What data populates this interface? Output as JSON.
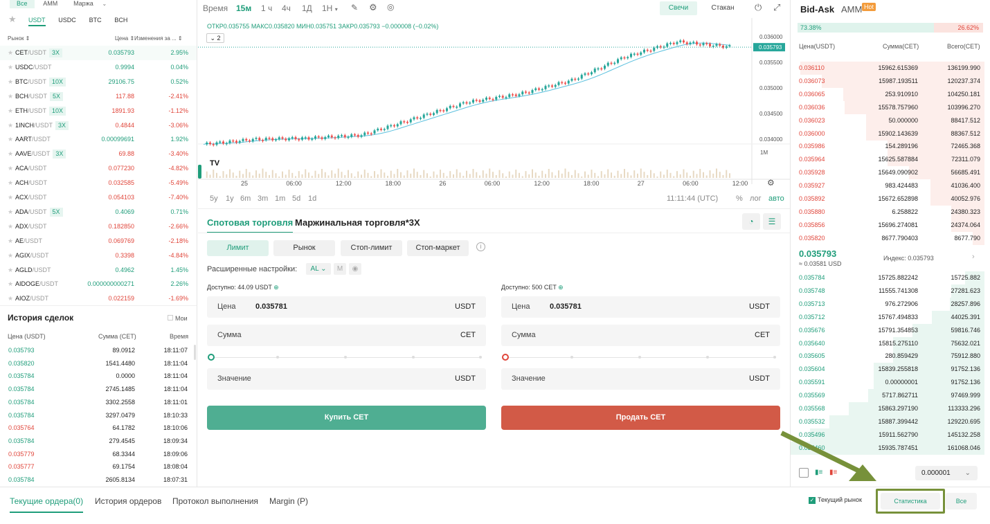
{
  "colors": {
    "green": "#1f9d7a",
    "red": "#e0453a",
    "buy_button": "#4fae92",
    "sell_button": "#d25a47",
    "annotation": "#77913a"
  },
  "market_tabs": [
    "Все",
    "AMM",
    "Маржа"
  ],
  "quote_tabs": [
    "USDT",
    "USDC",
    "BTC",
    "BCH"
  ],
  "markets_header": {
    "market": "Рынок",
    "price": "Цена",
    "change": "Изменения за ..."
  },
  "markets": [
    {
      "base": "CET",
      "quote": "/USDT",
      "lev": "3X",
      "price": "0.035793",
      "change": "2.95%",
      "up": true
    },
    {
      "base": "USDC",
      "quote": "/USDT",
      "lev": "",
      "price": "0.9994",
      "change": "0.04%",
      "up": true
    },
    {
      "base": "BTC",
      "quote": "/USDT",
      "lev": "10X",
      "price": "29106.75",
      "change": "0.52%",
      "up": true
    },
    {
      "base": "BCH",
      "quote": "/USDT",
      "lev": "5X",
      "price": "117.88",
      "change": "-2.41%",
      "up": false
    },
    {
      "base": "ETH",
      "quote": "/USDT",
      "lev": "10X",
      "price": "1891.93",
      "change": "-1.12%",
      "up": false
    },
    {
      "base": "1INCH",
      "quote": "/USDT",
      "lev": "3X",
      "price": "0.4844",
      "change": "-3.06%",
      "up": false
    },
    {
      "base": "AART",
      "quote": "/USDT",
      "lev": "",
      "price": "0.00099691",
      "change": "1.92%",
      "up": true
    },
    {
      "base": "AAVE",
      "quote": "/USDT",
      "lev": "3X",
      "price": "69.88",
      "change": "-3.40%",
      "up": false
    },
    {
      "base": "ACA",
      "quote": "/USDT",
      "lev": "",
      "price": "0.077230",
      "change": "-4.82%",
      "up": false
    },
    {
      "base": "ACH",
      "quote": "/USDT",
      "lev": "",
      "price": "0.032585",
      "change": "-5.49%",
      "up": false
    },
    {
      "base": "ACX",
      "quote": "/USDT",
      "lev": "",
      "price": "0.054103",
      "change": "-7.40%",
      "up": false
    },
    {
      "base": "ADA",
      "quote": "/USDT",
      "lev": "5X",
      "price": "0.4069",
      "change": "0.71%",
      "up": true
    },
    {
      "base": "ADX",
      "quote": "/USDT",
      "lev": "",
      "price": "0.182850",
      "change": "-2.66%",
      "up": false
    },
    {
      "base": "AE",
      "quote": "/USDT",
      "lev": "",
      "price": "0.069769",
      "change": "-2.18%",
      "up": false
    },
    {
      "base": "AGIX",
      "quote": "/USDT",
      "lev": "",
      "price": "0.3398",
      "change": "-4.84%",
      "up": false
    },
    {
      "base": "AGLD",
      "quote": "/USDT",
      "lev": "",
      "price": "0.4962",
      "change": "1.45%",
      "up": true
    },
    {
      "base": "AIDOGE",
      "quote": "/USDT",
      "lev": "",
      "price": "0.000000000271",
      "change": "2.26%",
      "up": true
    },
    {
      "base": "AIOZ",
      "quote": "/USDT",
      "lev": "",
      "price": "0.022159",
      "change": "-1.69%",
      "up": false
    }
  ],
  "trade_history": {
    "title": "История сделок",
    "mine": "Мои",
    "headers": {
      "price": "Цена (USDT)",
      "amount": "Сумма (CET)",
      "time": "Время"
    },
    "rows": [
      {
        "price": "0.035793",
        "amount": "89.0912",
        "time": "18:11:07",
        "up": true
      },
      {
        "price": "0.035820",
        "amount": "1541.4480",
        "time": "18:11:04",
        "up": true
      },
      {
        "price": "0.035784",
        "amount": "0.0000",
        "time": "18:11:04",
        "up": true
      },
      {
        "price": "0.035784",
        "amount": "2745.1485",
        "time": "18:11:04",
        "up": true
      },
      {
        "price": "0.035784",
        "amount": "3302.2558",
        "time": "18:11:01",
        "up": true
      },
      {
        "price": "0.035784",
        "amount": "3297.0479",
        "time": "18:10:33",
        "up": true
      },
      {
        "price": "0.035764",
        "amount": "64.1782",
        "time": "18:10:06",
        "up": false
      },
      {
        "price": "0.035784",
        "amount": "279.4545",
        "time": "18:09:34",
        "up": true
      },
      {
        "price": "0.035779",
        "amount": "68.3344",
        "time": "18:09:06",
        "up": false
      },
      {
        "price": "0.035777",
        "amount": "69.1754",
        "time": "18:08:04",
        "up": false
      },
      {
        "price": "0.035784",
        "amount": "2605.8134",
        "time": "18:07:31",
        "up": true
      }
    ]
  },
  "chart": {
    "timeframes": [
      "Время",
      "15м",
      "1 ч",
      "4ч",
      "1Д",
      "1Н"
    ],
    "view_tabs": [
      "Свечи",
      "Стакан"
    ],
    "ohlc": {
      "o": "ОТКР0.035755",
      "h": "МАКС0.035820",
      "l": "МИН0.035751",
      "c": "ЗАКР0.035793",
      "chg": "−0.000008 (−0.02%)"
    },
    "indicators_count": "2",
    "y_ticks": [
      "0.036000",
      "0.035500",
      "0.035000",
      "0.034500",
      "0.034000"
    ],
    "y_tick_values": [
      0.036,
      0.0355,
      0.035,
      0.0345,
      0.034
    ],
    "last_price": "0.035793",
    "volume_label": "1M",
    "x_ticks": [
      "25",
      "06:00",
      "12:00",
      "18:00",
      "26",
      "06:00",
      "12:00",
      "18:00",
      "27",
      "06:00",
      "12:00"
    ],
    "ranges": [
      "5y",
      "1y",
      "6m",
      "3m",
      "1m",
      "5d",
      "1d"
    ],
    "clock": "11:11:44 (UTC)",
    "opts": [
      "%",
      "лог",
      "авто"
    ]
  },
  "chart_data": {
    "type": "line",
    "title": "",
    "xlabel": "",
    "ylabel": "",
    "ylim": [
      0.0338,
      0.0362
    ],
    "x": [
      "25 00:00",
      "25 06:00",
      "25 12:00",
      "25 18:00",
      "26 00:00",
      "26 06:00",
      "26 12:00",
      "26 18:00",
      "27 00:00",
      "27 06:00",
      "27 11:00"
    ],
    "series": [
      {
        "values": [
          0.0339,
          0.034,
          0.03402,
          0.03408,
          0.0344,
          0.03472,
          0.03488,
          0.03515,
          0.0356,
          0.0359,
          0.0358
        ]
      }
    ]
  },
  "trade_tabs": [
    "Спотовая торговля",
    "Маржинальная торговля*3X"
  ],
  "order_types": [
    "Лимит",
    "Рынок",
    "Стоп-лимит",
    "Стоп-маркет"
  ],
  "advanced": {
    "label": "Расширенные настройки:",
    "al": "AL",
    "m": "M"
  },
  "buy": {
    "available_label": "Доступно:",
    "available": "44.09 USDT",
    "price_label": "Цена",
    "price": "0.035781",
    "price_unit": "USDT",
    "amount_label": "Сумма",
    "amount_unit": "CET",
    "value_label": "Значение",
    "value_unit": "USDT",
    "button": "Купить CET"
  },
  "sell": {
    "available_label": "Доступно:",
    "available": "500 CET",
    "price_label": "Цена",
    "price": "0.035781",
    "price_unit": "USDT",
    "amount_label": "Сумма",
    "amount_unit": "CET",
    "value_label": "Значение",
    "value_unit": "USDT",
    "button": "Продать CET"
  },
  "orderbook": {
    "tabs": [
      "Bid-Ask",
      "AMM"
    ],
    "hot": "Hot",
    "buy_ratio": "73.38%",
    "sell_ratio": "26.62%",
    "buy_fraction": 0.7338,
    "headers": {
      "price": "Цена(USDT)",
      "size": "Сумма(CET)",
      "total": "Всего(CET)"
    },
    "asks": [
      {
        "price": "0.036110",
        "size": "15962.615369",
        "total": "136199.990",
        "depth": 0.95
      },
      {
        "price": "0.036073",
        "size": "15987.193511",
        "total": "120237.374",
        "depth": 0.84
      },
      {
        "price": "0.036065",
        "size": "253.910910",
        "total": "104250.181",
        "depth": 0.73
      },
      {
        "price": "0.036036",
        "size": "15578.757960",
        "total": "103996.270",
        "depth": 0.72
      },
      {
        "price": "0.036023",
        "size": "50.000000",
        "total": "88417.512",
        "depth": 0.61
      },
      {
        "price": "0.036000",
        "size": "15902.143639",
        "total": "88367.512",
        "depth": 0.61
      },
      {
        "price": "0.035986",
        "size": "154.289196",
        "total": "72465.368",
        "depth": 0.5
      },
      {
        "price": "0.035964",
        "size": "15625.587884",
        "total": "72311.079",
        "depth": 0.5
      },
      {
        "price": "0.035928",
        "size": "15649.090902",
        "total": "56685.491",
        "depth": 0.39
      },
      {
        "price": "0.035927",
        "size": "983.424483",
        "total": "41036.400",
        "depth": 0.28
      },
      {
        "price": "0.035892",
        "size": "15672.652898",
        "total": "40052.976",
        "depth": 0.28
      },
      {
        "price": "0.035880",
        "size": "6.258822",
        "total": "24380.323",
        "depth": 0.17
      },
      {
        "price": "0.035856",
        "size": "15696.274081",
        "total": "24374.064",
        "depth": 0.17
      },
      {
        "price": "0.035820",
        "size": "8677.790403",
        "total": "8677.790",
        "depth": 0.06
      }
    ],
    "mid_price": "0.035793",
    "mid_usd": "≈ 0.03581 USD",
    "index": "Индекс: 0.035793",
    "bids": [
      {
        "price": "0.035784",
        "size": "15725.882242",
        "total": "15725.882",
        "depth": 0.1
      },
      {
        "price": "0.035748",
        "size": "11555.741308",
        "total": "27281.623",
        "depth": 0.17
      },
      {
        "price": "0.035713",
        "size": "976.272906",
        "total": "28257.896",
        "depth": 0.18
      },
      {
        "price": "0.035712",
        "size": "15767.494833",
        "total": "44025.391",
        "depth": 0.27
      },
      {
        "price": "0.035676",
        "size": "15791.354853",
        "total": "59816.746",
        "depth": 0.37
      },
      {
        "price": "0.035640",
        "size": "15815.275110",
        "total": "75632.021",
        "depth": 0.47
      },
      {
        "price": "0.035605",
        "size": "280.859429",
        "total": "75912.880",
        "depth": 0.47
      },
      {
        "price": "0.035604",
        "size": "15839.255818",
        "total": "91752.136",
        "depth": 0.57
      },
      {
        "price": "0.035591",
        "size": "0.00000001",
        "total": "91752.136",
        "depth": 0.57
      },
      {
        "price": "0.035569",
        "size": "5717.862711",
        "total": "97469.999",
        "depth": 0.6
      },
      {
        "price": "0.035568",
        "size": "15863.297190",
        "total": "113333.296",
        "depth": 0.7
      },
      {
        "price": "0.035532",
        "size": "15887.399442",
        "total": "129220.695",
        "depth": 0.8
      },
      {
        "price": "0.035496",
        "size": "15911.562790",
        "total": "145132.258",
        "depth": 0.9
      },
      {
        "price": "0.035460",
        "size": "15935.787451",
        "total": "161068.046",
        "depth": 1.0
      }
    ],
    "precision": "0.000001"
  },
  "bottom": {
    "tabs": [
      "Текущие ордера(0)",
      "История ордеров",
      "Протокол выполнения",
      "Margin (P)"
    ],
    "current_market": "Текущий рынок",
    "stats": "Статистика",
    "all": "Все"
  }
}
